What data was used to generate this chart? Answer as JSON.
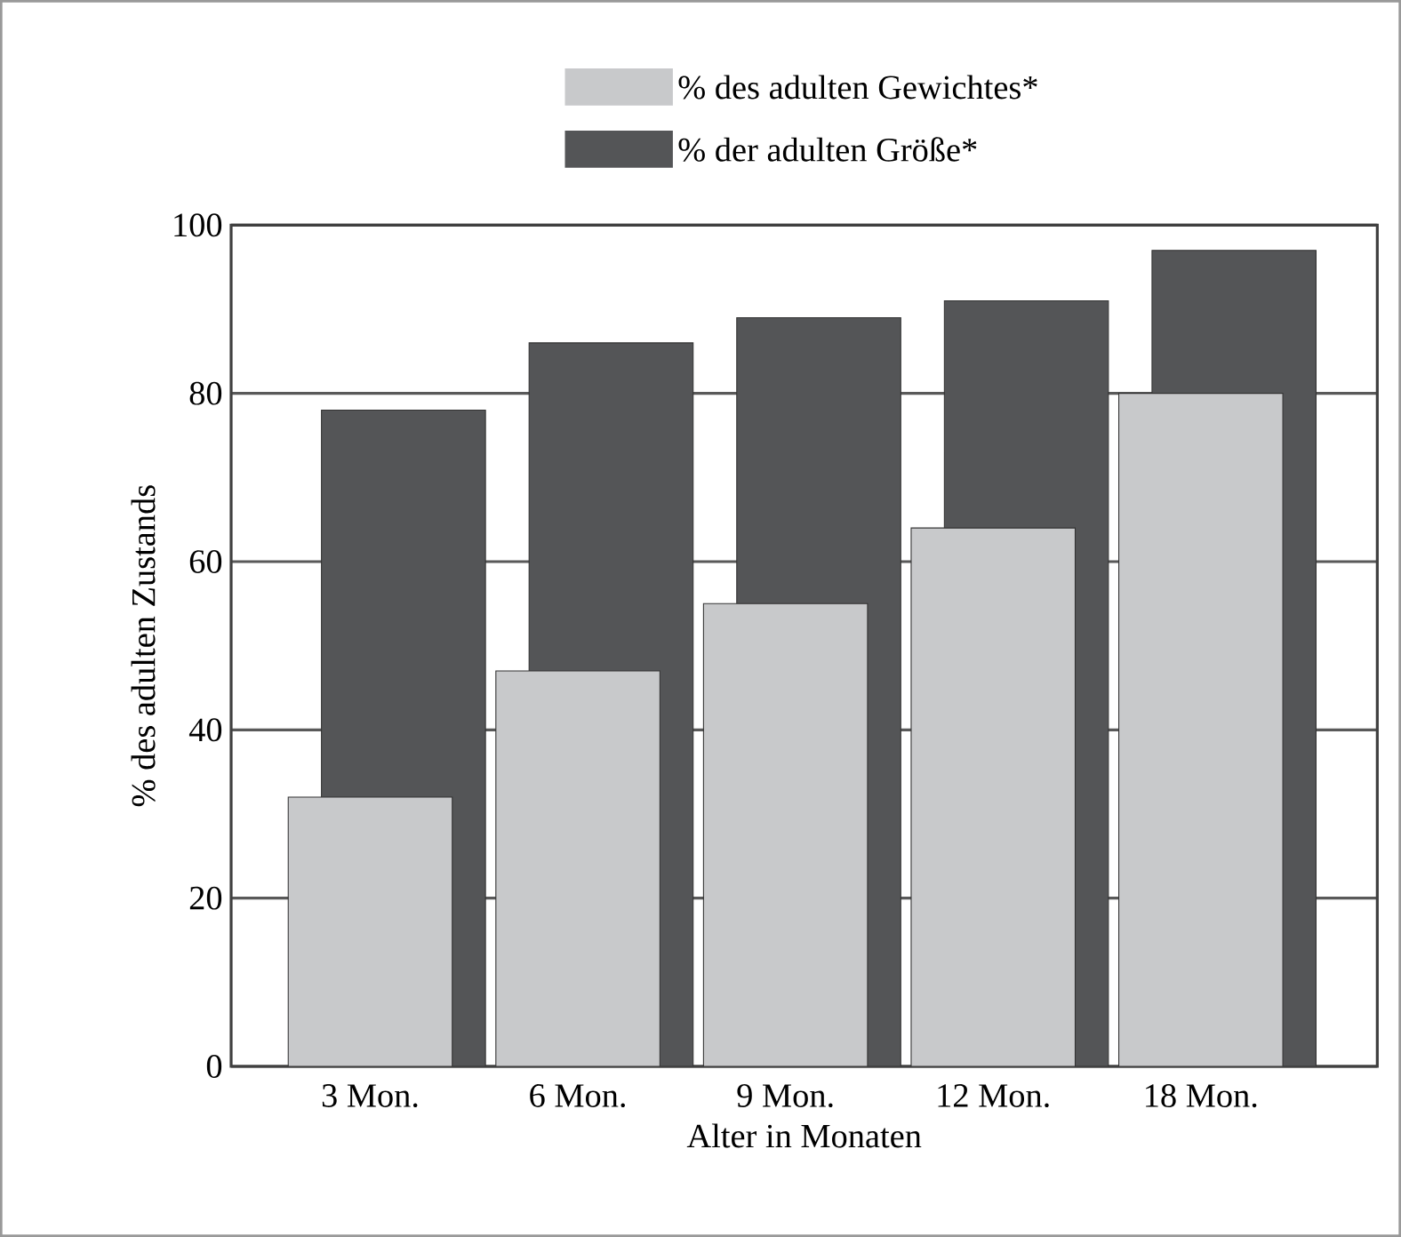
{
  "chart_data": {
    "type": "bar",
    "xlabel": "Alter in Monaten",
    "ylabel": "% des adulten Zustands",
    "categories": [
      "3 Mon.",
      "6 Mon.",
      "9 Mon.",
      "12 Mon.",
      "18 Mon."
    ],
    "series": [
      {
        "name": "% der adulten Größe*",
        "color": "#545557",
        "values": [
          78,
          86,
          89,
          91,
          97
        ]
      },
      {
        "name": "% des adulten Gewichtes*",
        "color": "#c8c9cb",
        "values": [
          32,
          47,
          55,
          64,
          80
        ]
      }
    ],
    "ylim": [
      0,
      100
    ],
    "yticks": [
      0,
      20,
      40,
      60,
      80,
      100
    ],
    "grid": "y",
    "legend": "top"
  }
}
